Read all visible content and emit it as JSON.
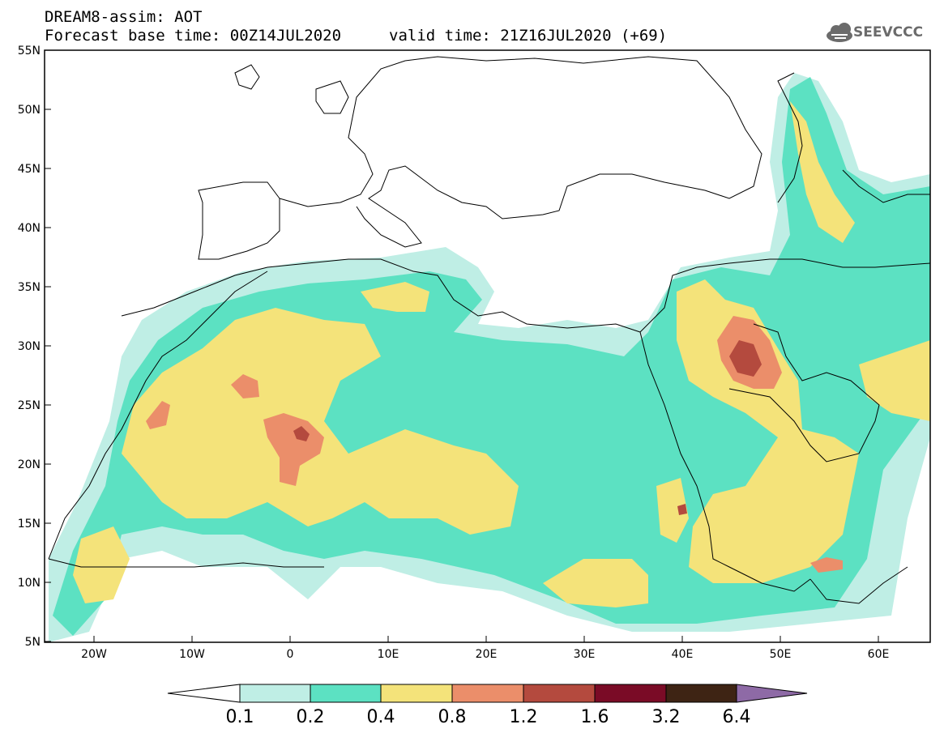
{
  "header": {
    "line1": "DREAM8-assim: AOT",
    "line2": "Forecast base time: 00Z14JUL2020",
    "line3": "valid time: 21Z16JUL2020 (+69)"
  },
  "logo": {
    "text": "SEEVCCC",
    "icon": "cloud-icon"
  },
  "map": {
    "lat_labels": [
      "55N",
      "50N",
      "45N",
      "40N",
      "35N",
      "30N",
      "25N",
      "20N",
      "15N",
      "10N",
      "5N"
    ],
    "lon_labels": [
      "20W",
      "10W",
      "0",
      "10E",
      "20E",
      "30E",
      "40E",
      "50E",
      "60E"
    ],
    "extent": {
      "lon": [
        -25,
        65
      ],
      "lat": [
        5,
        55
      ]
    }
  },
  "colorbar": {
    "labels": [
      "0.1",
      "0.2",
      "0.4",
      "0.8",
      "1.2",
      "1.6",
      "3.2",
      "6.4"
    ],
    "colors": [
      "#ffffff",
      "#bfeee5",
      "#5ce1c2",
      "#f4e37a",
      "#eb8e6a",
      "#b44a3e",
      "#7a0b26",
      "#3e2414",
      "#8e6aa6"
    ]
  }
}
